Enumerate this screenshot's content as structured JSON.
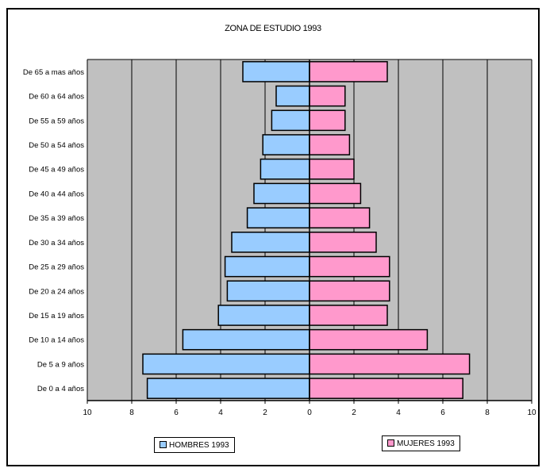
{
  "chart_data": {
    "type": "bar",
    "orientation": "horizontal-population-pyramid",
    "title": "ZONA DE ESTUDIO 1993",
    "categories": [
      "De 0 a 4 años",
      "De 5 a 9 años",
      "De 10 a 14 años",
      "De 15 a 19 años",
      "De 20 a 24 años",
      "De 25 a 29 años",
      "De 30 a 34 años",
      "De 35 a 39 años",
      "De 40 a 44 años",
      "De 45 a 49 años",
      "De 50 a 54 años",
      "De 55 a 59 años",
      "De 60 a 64 años",
      "De 65 a mas años"
    ],
    "series": [
      {
        "name": "HOMBRES 1993",
        "color": "#99ccff",
        "side": "left",
        "values": [
          7.3,
          7.5,
          5.7,
          4.1,
          3.7,
          3.8,
          3.5,
          2.8,
          2.5,
          2.2,
          2.1,
          1.7,
          1.5,
          3.0
        ]
      },
      {
        "name": "MUJERES 1993",
        "color": "#ff99cc",
        "side": "right",
        "values": [
          6.9,
          7.2,
          5.3,
          3.5,
          3.6,
          3.6,
          3.0,
          2.7,
          2.3,
          2.0,
          1.8,
          1.6,
          1.6,
          3.5
        ]
      }
    ],
    "xlim": [
      -10,
      10
    ],
    "x_tick_labels": [
      "10",
      "8",
      "6",
      "4",
      "2",
      "0",
      "2",
      "4",
      "6",
      "8",
      "10"
    ],
    "plot_background": "#c0c0c0",
    "grid": true,
    "legend": "bottom"
  }
}
